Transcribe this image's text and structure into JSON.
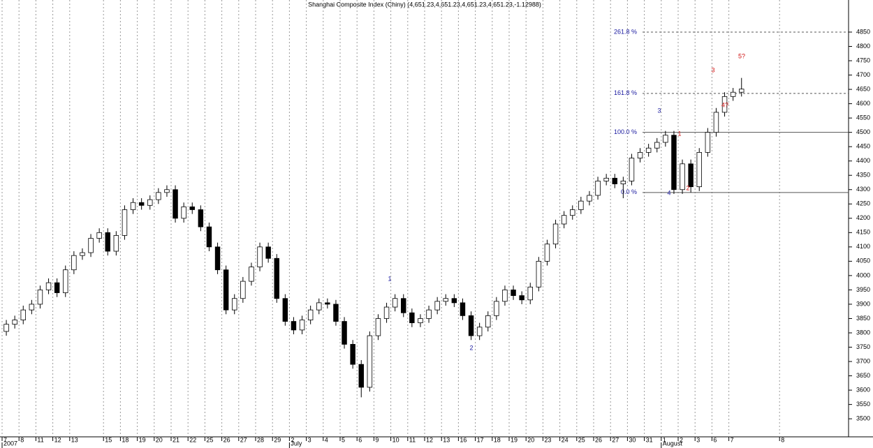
{
  "chart_data": {
    "type": "candlestick",
    "title": "Shanghai Composite Index (Chiny) (4,651.23,4,651.23,4,651.23,4,651.23,-1.12988)",
    "open": [
      3805,
      3830,
      3845,
      3880,
      3900,
      3950,
      3975,
      3940,
      4020,
      4070,
      4080,
      4130,
      4150,
      4085,
      4140,
      4230,
      4255,
      4245,
      4265,
      4290,
      4300,
      4200,
      4240,
      4230,
      4170,
      4100,
      4020,
      3880,
      3920,
      3980,
      4030,
      4100,
      4060,
      3920,
      3840,
      3810,
      3845,
      3880,
      3905,
      3900,
      3840,
      3760,
      3690,
      3610,
      3790,
      3850,
      3890,
      3920,
      3870,
      3835,
      3850,
      3880,
      3910,
      3920,
      3905,
      3860,
      3790,
      3820,
      3860,
      3910,
      3950,
      3930,
      3915,
      3960,
      4050,
      4110,
      4180,
      4210,
      4230,
      4260,
      4280,
      4330,
      4340,
      4320,
      4330,
      4410,
      4430,
      4445,
      4465,
      4490,
      4300,
      4390,
      4310,
      4430,
      4500,
      4570,
      4625,
      4640
    ],
    "high": [
      3845,
      3860,
      3895,
      3915,
      3965,
      3990,
      3990,
      4035,
      4085,
      4095,
      4145,
      4165,
      4165,
      4155,
      4245,
      4270,
      4270,
      4280,
      4305,
      4315,
      4315,
      4255,
      4255,
      4245,
      4185,
      4115,
      4035,
      3935,
      3995,
      4045,
      4115,
      4115,
      4075,
      3935,
      3855,
      3860,
      3895,
      3920,
      3920,
      3915,
      3855,
      3775,
      3705,
      3805,
      3865,
      3905,
      3935,
      3935,
      3885,
      3865,
      3895,
      3925,
      3935,
      3935,
      3920,
      3875,
      3835,
      3875,
      3925,
      3965,
      3965,
      3945,
      3975,
      4065,
      4125,
      4195,
      4225,
      4245,
      4275,
      4295,
      4345,
      4355,
      4355,
      4345,
      4425,
      4445,
      4460,
      4480,
      4505,
      4505,
      4405,
      4405,
      4445,
      4515,
      4585,
      4640,
      4655,
      4690
    ],
    "low": [
      3790,
      3815,
      3830,
      3865,
      3885,
      3935,
      3925,
      3925,
      4005,
      4055,
      4065,
      4115,
      4070,
      4070,
      4125,
      4215,
      4230,
      4230,
      4250,
      4275,
      4185,
      4185,
      4215,
      4155,
      4085,
      4005,
      3865,
      3865,
      3905,
      3965,
      4015,
      4045,
      3905,
      3825,
      3795,
      3795,
      3830,
      3865,
      3885,
      3825,
      3745,
      3675,
      3575,
      3595,
      3775,
      3835,
      3875,
      3855,
      3820,
      3820,
      3835,
      3865,
      3895,
      3890,
      3845,
      3775,
      3775,
      3805,
      3845,
      3895,
      3915,
      3900,
      3900,
      3945,
      4035,
      4095,
      4165,
      4195,
      4215,
      4245,
      4265,
      4315,
      4305,
      4270,
      4315,
      4395,
      4415,
      4430,
      4450,
      4285,
      4285,
      4290,
      4295,
      4415,
      4485,
      4555,
      4610,
      4625
    ],
    "close": [
      3830,
      3845,
      3880,
      3900,
      3950,
      3975,
      3940,
      4020,
      4070,
      4080,
      4130,
      4150,
      4085,
      4140,
      4230,
      4255,
      4245,
      4265,
      4290,
      4300,
      4200,
      4240,
      4230,
      4170,
      4100,
      4020,
      3880,
      3920,
      3980,
      4030,
      4100,
      4060,
      3920,
      3840,
      3810,
      3845,
      3880,
      3905,
      3900,
      3840,
      3760,
      3690,
      3610,
      3790,
      3850,
      3890,
      3920,
      3870,
      3835,
      3850,
      3880,
      3910,
      3920,
      3905,
      3860,
      3790,
      3820,
      3860,
      3910,
      3950,
      3930,
      3915,
      3960,
      4050,
      4110,
      4180,
      4210,
      4230,
      4260,
      4280,
      4330,
      4340,
      4320,
      4330,
      4410,
      4430,
      4445,
      4465,
      4490,
      4300,
      4390,
      4310,
      4430,
      4500,
      4570,
      4625,
      4640,
      4651
    ],
    "xlim": [
      0,
      100
    ],
    "xticks": [
      {
        "value": 0,
        "label": "7"
      },
      {
        "value": 2,
        "label": "8"
      },
      {
        "value": 4,
        "label": "11"
      },
      {
        "value": 6,
        "label": "12"
      },
      {
        "value": 8,
        "label": "13"
      },
      {
        "value": 12,
        "label": "15"
      },
      {
        "value": 14,
        "label": "18"
      },
      {
        "value": 16,
        "label": "19"
      },
      {
        "value": 18,
        "label": "20"
      },
      {
        "value": 20,
        "label": "21"
      },
      {
        "value": 22,
        "label": "22"
      },
      {
        "value": 24,
        "label": "25"
      },
      {
        "value": 26,
        "label": "26"
      },
      {
        "value": 28,
        "label": "27"
      },
      {
        "value": 30,
        "label": "28"
      },
      {
        "value": 32,
        "label": "29"
      },
      {
        "value": 34,
        "label": "2"
      },
      {
        "value": 36,
        "label": "3"
      },
      {
        "value": 38,
        "label": "4"
      },
      {
        "value": 40,
        "label": "5"
      },
      {
        "value": 42,
        "label": "6"
      },
      {
        "value": 44,
        "label": "9"
      },
      {
        "value": 46,
        "label": "10"
      },
      {
        "value": 48,
        "label": "11"
      },
      {
        "value": 50,
        "label": "12"
      },
      {
        "value": 52,
        "label": "13"
      },
      {
        "value": 54,
        "label": "16"
      },
      {
        "value": 56,
        "label": "17"
      },
      {
        "value": 58,
        "label": "18"
      },
      {
        "value": 60,
        "label": "19"
      },
      {
        "value": 62,
        "label": "20"
      },
      {
        "value": 64,
        "label": "23"
      },
      {
        "value": 66,
        "label": "24"
      },
      {
        "value": 68,
        "label": "25"
      },
      {
        "value": 70,
        "label": "26"
      },
      {
        "value": 72,
        "label": "27"
      },
      {
        "value": 74,
        "label": "30"
      },
      {
        "value": 76,
        "label": "31"
      },
      {
        "value": 78,
        "label": "1"
      },
      {
        "value": 80,
        "label": "2"
      },
      {
        "value": 82,
        "label": "3"
      },
      {
        "value": 84,
        "label": "6"
      },
      {
        "value": 86,
        "label": "7"
      },
      {
        "value": 92,
        "label": "8"
      }
    ],
    "periods": [
      {
        "value": 0,
        "label": "2007"
      },
      {
        "value": 34,
        "label": "July"
      },
      {
        "value": 78,
        "label": "August"
      }
    ],
    "ylim": [
      3437,
      4962
    ],
    "yticks": [
      3500,
      3550,
      3600,
      3650,
      3700,
      3750,
      3800,
      3850,
      3900,
      3950,
      4000,
      4050,
      4100,
      4150,
      4200,
      4250,
      4300,
      4350,
      4400,
      4450,
      4500,
      4550,
      4600,
      4650,
      4700,
      4750,
      4800,
      4850
    ],
    "fib_levels": [
      {
        "value": 4850,
        "label": "261.8 %"
      },
      {
        "value": 4636,
        "label": "161.8 %"
      },
      {
        "value": 4500,
        "label": "100.0 %"
      },
      {
        "value": 4290,
        "label": "0.0 %"
      }
    ],
    "wave_labels": [
      {
        "text": "1",
        "color": "#1a1aa0"
      },
      {
        "text": "2",
        "color": "#1a1aa0"
      },
      {
        "text": "3",
        "color": "#1a1aa0"
      },
      {
        "text": "4",
        "color": "#1a1aa0"
      },
      {
        "text": "1",
        "color": "#d01010"
      },
      {
        "text": "2",
        "color": "#d01010"
      },
      {
        "text": "3",
        "color": "#d01010"
      },
      {
        "text": "4?",
        "color": "#d01010"
      },
      {
        "text": "5?",
        "color": "#d01010"
      }
    ],
    "grid": true
  }
}
